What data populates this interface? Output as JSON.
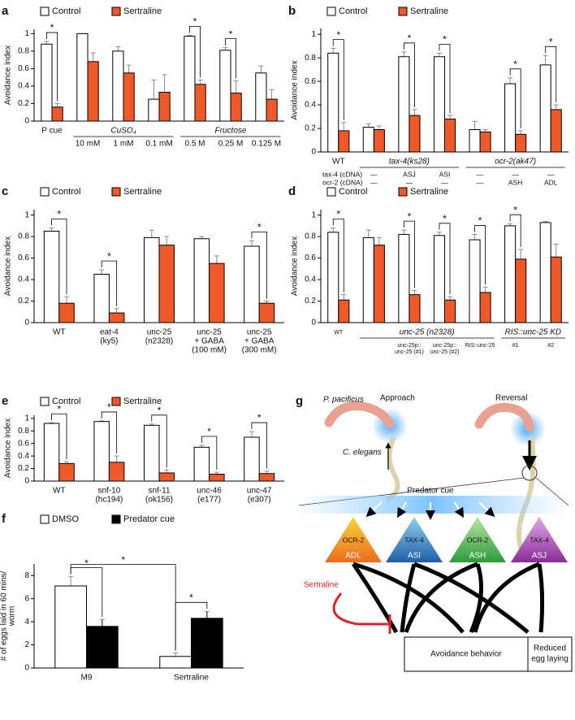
{
  "chart_data": [
    {
      "type": "bar",
      "panel": "a",
      "ylabel": "Avoidance index",
      "categories": [
        "P cue",
        "10 mM",
        "1 mM",
        "0.1 mM",
        "0.5 M",
        "0.25 M",
        "0.125 M"
      ],
      "groups": [
        {
          "label": "CuSO₄",
          "categories": [
            1,
            2,
            3
          ]
        },
        {
          "label": "Fructose",
          "categories": [
            4,
            5,
            6
          ]
        }
      ],
      "series": [
        {
          "name": "Control",
          "color": "#ffffff",
          "values": [
            0.88,
            1.0,
            0.8,
            0.25,
            0.97,
            0.81,
            0.55
          ],
          "errors": [
            0.03,
            0,
            0.05,
            0.22,
            0.01,
            0.03,
            0.08
          ]
        },
        {
          "name": "Sertraline",
          "color": "#ef5a28",
          "values": [
            0.16,
            0.68,
            0.55,
            0.33,
            0.42,
            0.32,
            0.25
          ],
          "errors": [
            0.04,
            0.1,
            0.09,
            0.2,
            0.05,
            0.14,
            0.11
          ]
        }
      ],
      "significance": [
        "*",
        null,
        null,
        null,
        "*",
        "*",
        null
      ],
      "ylim": [
        0,
        1.05
      ],
      "yticks": [
        0,
        0.2,
        0.4,
        0.6,
        0.8,
        1
      ]
    },
    {
      "type": "bar",
      "panel": "b",
      "ylabel": "Avoidance index",
      "categories": [
        "WT",
        null,
        null,
        null,
        null,
        null,
        null
      ],
      "groups": [
        {
          "label": "tax-4(ks28)",
          "categories": [
            1,
            2,
            3
          ]
        },
        {
          "label": "ocr-2(ak47)",
          "categories": [
            4,
            5,
            6
          ]
        }
      ],
      "rows": [
        {
          "label": "tax-4 (cDNA)",
          "values": [
            null,
            "—",
            "ASJ",
            "ASI",
            "—",
            "—",
            "—"
          ]
        },
        {
          "label": "ocr-2 (cDNA)",
          "values": [
            null,
            "—",
            "—",
            "—",
            "—",
            "ASH",
            "ADL"
          ]
        }
      ],
      "series": [
        {
          "name": "Control",
          "color": "#ffffff",
          "values": [
            0.84,
            0.21,
            0.81,
            0.81,
            0.19,
            0.58,
            0.74
          ],
          "errors": [
            0.04,
            0.03,
            0.04,
            0.03,
            0.07,
            0.05,
            0.08
          ]
        },
        {
          "name": "Sertraline",
          "color": "#ef5a28",
          "values": [
            0.18,
            0.19,
            0.31,
            0.28,
            0.17,
            0.15,
            0.36
          ],
          "errors": [
            0.07,
            0.03,
            0.05,
            0.03,
            0.02,
            0.03,
            0.04
          ]
        }
      ],
      "significance": [
        "*",
        null,
        "*",
        "*",
        null,
        "*",
        "*"
      ],
      "ylim": [
        0,
        1.05
      ],
      "yticks": [
        0,
        0.2,
        0.4,
        0.6,
        0.8,
        1
      ]
    },
    {
      "type": "bar",
      "panel": "c",
      "ylabel": "Avoidance index",
      "categories": [
        "WT",
        [
          "eat-4",
          "(ky5)"
        ],
        [
          "unc-25",
          "(n2328)"
        ],
        [
          "unc-25",
          "+ GABA",
          "(100 mM)"
        ],
        [
          "unc-25",
          "+ GABA",
          "(300 mM)"
        ]
      ],
      "series": [
        {
          "name": "Control",
          "color": "#ffffff",
          "values": [
            0.85,
            0.45,
            0.79,
            0.78,
            0.71
          ],
          "errors": [
            0.03,
            0.04,
            0.07,
            0.02,
            0.05
          ]
        },
        {
          "name": "Sertraline",
          "color": "#ef5a28",
          "values": [
            0.18,
            0.09,
            0.72,
            0.55,
            0.18
          ],
          "errors": [
            0.06,
            0.04,
            0.08,
            0.07,
            0.02
          ]
        }
      ],
      "significance": [
        "*",
        "*",
        null,
        null,
        "*"
      ],
      "ylim": [
        0,
        1.05
      ],
      "yticks": [
        0,
        0.2,
        0.4,
        0.6,
        0.8,
        1
      ]
    },
    {
      "type": "bar",
      "panel": "d",
      "ylabel": "Avoidance index",
      "categories": [
        "WT",
        null,
        [
          "unc-25p::",
          "unc-25 (#1)"
        ],
        [
          "unc-25p::",
          "unc-25 (#2)"
        ],
        "RIS::unc-25",
        "#1",
        "#2"
      ],
      "groups": [
        {
          "label": "unc-25 (n2328)",
          "categories": [
            1,
            2,
            3,
            4
          ]
        },
        {
          "label": "RIS::unc-25 KD",
          "categories": [
            5,
            6
          ]
        }
      ],
      "series": [
        {
          "name": "Control",
          "color": "#ffffff",
          "values": [
            0.84,
            0.79,
            0.82,
            0.81,
            0.77,
            0.9,
            0.93
          ],
          "errors": [
            0.04,
            0.07,
            0.04,
            0.03,
            0.05,
            0.02,
            0.01
          ]
        },
        {
          "name": "Sertraline",
          "color": "#ef5a28",
          "values": [
            0.21,
            0.72,
            0.26,
            0.21,
            0.28,
            0.59,
            0.61
          ],
          "errors": [
            0.05,
            0.07,
            0.04,
            0.03,
            0.05,
            0.09,
            0.12
          ]
        }
      ],
      "significance": [
        "*",
        null,
        "*",
        "*",
        "*",
        "*",
        null
      ],
      "ylim": [
        0,
        1.05
      ],
      "yticks": [
        0,
        0.2,
        0.4,
        0.6,
        0.8,
        1
      ]
    },
    {
      "type": "bar",
      "panel": "e",
      "ylabel": "Avoidance index",
      "categories": [
        "WT",
        [
          "snf-10",
          "(hc194)"
        ],
        [
          "snf-11",
          "(ok156)"
        ],
        [
          "unc-46",
          "(e177)"
        ],
        [
          "unc-47",
          "(e307)"
        ]
      ],
      "series": [
        {
          "name": "Control",
          "color": "#ffffff",
          "values": [
            0.92,
            0.95,
            0.89,
            0.54,
            0.7
          ],
          "errors": [
            0.01,
            0.01,
            0.02,
            0.03,
            0.09
          ]
        },
        {
          "name": "Sertraline",
          "color": "#ef5a28",
          "values": [
            0.28,
            0.3,
            0.13,
            0.11,
            0.12
          ],
          "errors": [
            0.03,
            0.1,
            0.05,
            0.03,
            0.04
          ]
        }
      ],
      "significance": [
        "*",
        "*",
        "*",
        "*",
        "*"
      ],
      "ylim": [
        0,
        1.05
      ],
      "yticks": [
        0,
        0.2,
        0.4,
        0.6,
        0.8,
        1
      ]
    },
    {
      "type": "bar",
      "panel": "f",
      "ylabel": [
        "# of eggs laid in 60 mins/",
        "worm"
      ],
      "categories": [
        "M9",
        "Sertraline"
      ],
      "series": [
        {
          "name": "DMSO",
          "color": "#ffffff",
          "values": [
            7.1,
            1.0
          ],
          "errors": [
            0.8,
            0.3
          ]
        },
        {
          "name": "Predator cue",
          "color": "#000000",
          "values": [
            3.6,
            4.3
          ],
          "errors": [
            0.6,
            0.6
          ]
        }
      ],
      "significance": [
        "*",
        "*"
      ],
      "between_significance": {
        "label": "*",
        "series": 0
      },
      "ylim": [
        0,
        9
      ],
      "yticks": [
        0,
        2,
        4,
        6,
        8
      ]
    }
  ],
  "diagram": {
    "label": "g",
    "predator": "P. pacificus",
    "prey": "C. elegans",
    "approach": "Approach",
    "reversal": "Reversal",
    "cue": "Predator cue",
    "neurons": [
      {
        "name": "ADL",
        "receptor": "OCR-2"
      },
      {
        "name": "ASI",
        "receptor": "TAX-4"
      },
      {
        "name": "ASH",
        "receptor": "OCR-2"
      },
      {
        "name": "ASJ",
        "receptor": "TAX-4"
      }
    ],
    "drug": "Sertraline",
    "outcomes": [
      "Avoidance behavior",
      [
        "Reduced",
        "egg laying"
      ]
    ]
  }
}
